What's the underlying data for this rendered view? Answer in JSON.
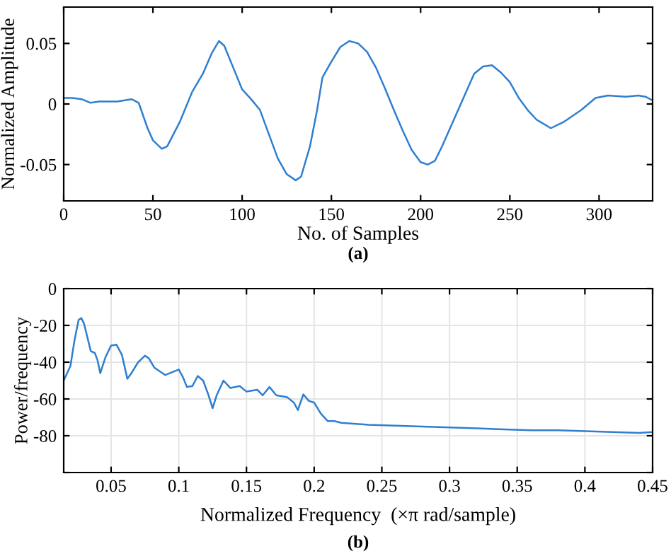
{
  "chart_data": [
    {
      "type": "line",
      "xlabel": "No. of Samples",
      "ylabel": "Normalized Amplitude",
      "annotations": [
        "(a)"
      ],
      "xlim": [
        0,
        330
      ],
      "ylim": [
        -0.08,
        0.08
      ],
      "xticks": [
        0,
        50,
        100,
        150,
        200,
        250,
        300
      ],
      "yticks": [
        -0.05,
        0,
        0.05
      ],
      "grid": false,
      "series": [
        {
          "color": "#2f7fd1",
          "x": [
            0,
            5,
            10,
            15,
            20,
            30,
            38,
            42,
            47,
            50,
            55,
            58,
            65,
            72,
            78,
            83,
            87,
            90,
            95,
            100,
            105,
            110,
            115,
            120,
            125,
            130,
            133,
            138,
            142,
            145,
            150,
            155,
            160,
            165,
            170,
            175,
            180,
            185,
            190,
            195,
            200,
            204,
            208,
            212,
            218,
            224,
            230,
            235,
            240,
            245,
            250,
            255,
            260,
            265,
            273,
            280,
            290,
            298,
            305,
            315,
            322,
            326,
            330
          ],
          "values": [
            0.005,
            0.005,
            0.004,
            0.001,
            0.002,
            0.002,
            0.004,
            0.001,
            -0.02,
            -0.03,
            -0.037,
            -0.035,
            -0.015,
            0.01,
            0.025,
            0.042,
            0.052,
            0.048,
            0.03,
            0.012,
            0.004,
            -0.005,
            -0.025,
            -0.045,
            -0.058,
            -0.063,
            -0.06,
            -0.035,
            -0.005,
            0.022,
            0.035,
            0.047,
            0.052,
            0.05,
            0.043,
            0.03,
            0.013,
            -0.005,
            -0.022,
            -0.038,
            -0.048,
            -0.05,
            -0.047,
            -0.035,
            -0.015,
            0.005,
            0.025,
            0.031,
            0.032,
            0.026,
            0.018,
            0.005,
            -0.005,
            -0.013,
            -0.02,
            -0.015,
            -0.005,
            0.005,
            0.007,
            0.006,
            0.007,
            0.006,
            0.003
          ]
        }
      ]
    },
    {
      "type": "line",
      "xlabel": "Normalized Frequency  (×π rad/sample)",
      "ylabel": "Power/frequency",
      "annotations": [
        "(b)"
      ],
      "xlim": [
        0.015,
        0.45
      ],
      "ylim": [
        -100,
        0
      ],
      "xticks": [
        0.05,
        0.1,
        0.15,
        0.2,
        0.25,
        0.3,
        0.35,
        0.4,
        0.45
      ],
      "yticks": [
        {
          "value": -100,
          "label": null
        },
        -80,
        -60,
        -40,
        -20,
        0
      ],
      "grid": true,
      "series": [
        {
          "color": "#2f7fd1",
          "x": [
            0.015,
            0.02,
            0.023,
            0.026,
            0.028,
            0.03,
            0.033,
            0.035,
            0.038,
            0.04,
            0.042,
            0.046,
            0.05,
            0.054,
            0.058,
            0.062,
            0.065,
            0.07,
            0.075,
            0.078,
            0.082,
            0.09,
            0.1,
            0.103,
            0.106,
            0.11,
            0.114,
            0.118,
            0.122,
            0.125,
            0.128,
            0.133,
            0.138,
            0.145,
            0.15,
            0.158,
            0.162,
            0.167,
            0.172,
            0.18,
            0.185,
            0.188,
            0.192,
            0.196,
            0.2,
            0.205,
            0.21,
            0.215,
            0.22,
            0.24,
            0.26,
            0.28,
            0.3,
            0.32,
            0.34,
            0.36,
            0.38,
            0.4,
            0.42,
            0.44,
            0.45
          ],
          "values": [
            -50,
            -42,
            -28,
            -17,
            -16,
            -19,
            -28,
            -34,
            -35,
            -39,
            -46,
            -37,
            -31,
            -30.5,
            -36,
            -49,
            -46,
            -40,
            -36.5,
            -38,
            -43,
            -47,
            -44,
            -48,
            -53.5,
            -53,
            -47.5,
            -50,
            -58,
            -65,
            -58,
            -50,
            -54,
            -53,
            -56,
            -55,
            -58,
            -53.5,
            -58,
            -59,
            -62,
            -66,
            -57.5,
            -61,
            -62,
            -68,
            -72,
            -72,
            -73,
            -74,
            -74.5,
            -75,
            -75.5,
            -76,
            -76.5,
            -77,
            -77,
            -77.5,
            -78,
            -78.5,
            -78
          ]
        }
      ]
    }
  ]
}
